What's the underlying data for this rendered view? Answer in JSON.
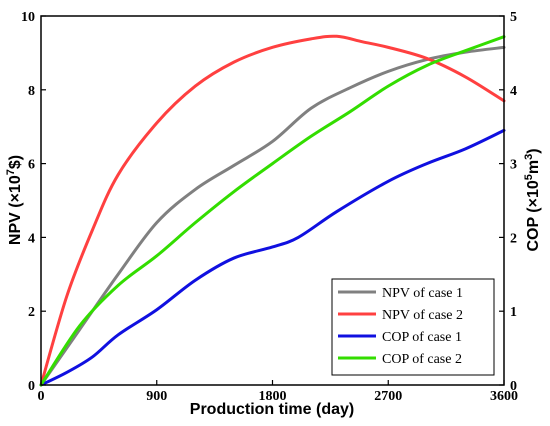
{
  "chart_data": {
    "type": "line",
    "xlabel": "Production time (day)",
    "ylabel_left": {
      "main": "NPV (×10",
      "sup": "7",
      "tail": "$)"
    },
    "ylabel_right": {
      "main": "COP (×10",
      "sup": "5",
      "mid": "m",
      "sup2": "3",
      "tail": ")"
    },
    "xlim": [
      0,
      3600
    ],
    "ylim_left": [
      0,
      10
    ],
    "ylim_right": [
      0,
      5
    ],
    "x_ticks": [
      "0",
      "900",
      "1800",
      "2700",
      "3600"
    ],
    "y_left_ticks": [
      "0",
      "2",
      "4",
      "6",
      "8",
      "10"
    ],
    "y_right_ticks": [
      "0",
      "1",
      "2",
      "3",
      "4",
      "5"
    ],
    "legend_position": "bottom-right",
    "series": [
      {
        "name": "NPV of case 1",
        "axis": "left",
        "color": "#808080",
        "points": [
          [
            0,
            0
          ],
          [
            300,
            1.5
          ],
          [
            600,
            3.0
          ],
          [
            900,
            4.4
          ],
          [
            1200,
            5.3
          ],
          [
            1500,
            5.95
          ],
          [
            1800,
            6.6
          ],
          [
            2100,
            7.5
          ],
          [
            2400,
            8.05
          ],
          [
            2700,
            8.5
          ],
          [
            3000,
            8.82
          ],
          [
            3300,
            9.02
          ],
          [
            3600,
            9.15
          ]
        ]
      },
      {
        "name": "NPV of case 2",
        "axis": "left",
        "color": "#ff4040",
        "points": [
          [
            0,
            0
          ],
          [
            200,
            2.4
          ],
          [
            400,
            4.2
          ],
          [
            600,
            5.7
          ],
          [
            900,
            7.1
          ],
          [
            1200,
            8.1
          ],
          [
            1500,
            8.75
          ],
          [
            1800,
            9.15
          ],
          [
            2100,
            9.38
          ],
          [
            2300,
            9.45
          ],
          [
            2500,
            9.3
          ],
          [
            2700,
            9.15
          ],
          [
            3000,
            8.85
          ],
          [
            3300,
            8.35
          ],
          [
            3600,
            7.7
          ]
        ]
      },
      {
        "name": "COP of case 1",
        "axis": "right",
        "color": "#1010e0",
        "points": [
          [
            0,
            0
          ],
          [
            200,
            0.17
          ],
          [
            400,
            0.38
          ],
          [
            600,
            0.68
          ],
          [
            900,
            1.02
          ],
          [
            1200,
            1.42
          ],
          [
            1500,
            1.72
          ],
          [
            1800,
            1.87
          ],
          [
            2000,
            2.0
          ],
          [
            2300,
            2.35
          ],
          [
            2700,
            2.76
          ],
          [
            3000,
            3.0
          ],
          [
            3300,
            3.2
          ],
          [
            3600,
            3.45
          ]
        ]
      },
      {
        "name": "COP of case 2",
        "axis": "right",
        "color": "#33dd00",
        "points": [
          [
            0,
            0
          ],
          [
            300,
            0.8
          ],
          [
            600,
            1.35
          ],
          [
            900,
            1.75
          ],
          [
            1200,
            2.2
          ],
          [
            1500,
            2.62
          ],
          [
            1800,
            3.0
          ],
          [
            2100,
            3.37
          ],
          [
            2400,
            3.7
          ],
          [
            2700,
            4.05
          ],
          [
            3000,
            4.33
          ],
          [
            3300,
            4.53
          ],
          [
            3600,
            4.72
          ]
        ]
      }
    ]
  }
}
